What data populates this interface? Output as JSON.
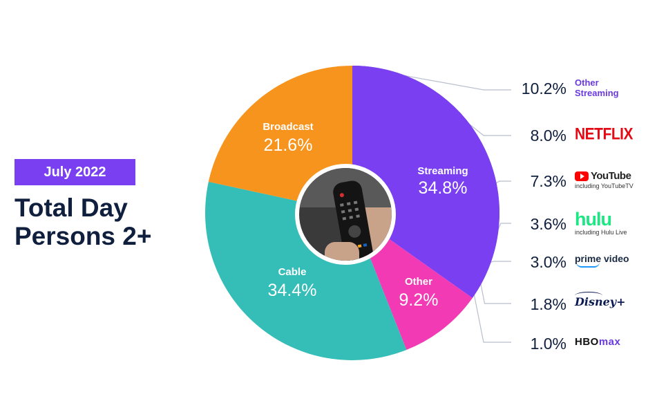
{
  "header": {
    "badge": "July 2022",
    "title_line1": "Total Day",
    "title_line2": "Persons 2+"
  },
  "colors": {
    "broadcast": "#f7941d",
    "streaming": "#7b3ff2",
    "cable": "#35bdb8",
    "other": "#f23ab5"
  },
  "chart_data": {
    "type": "pie",
    "title": "",
    "series": [
      {
        "name": "Streaming",
        "value": 34.8,
        "label": "34.8%",
        "color": "#7b3ff2"
      },
      {
        "name": "Other",
        "value": 9.2,
        "label": "9.2%",
        "color": "#f23ab5"
      },
      {
        "name": "Cable",
        "value": 34.4,
        "label": "34.4%",
        "color": "#35bdb8"
      },
      {
        "name": "Broadcast",
        "value": 21.6,
        "label": "21.6%",
        "color": "#f7941d"
      }
    ],
    "streaming_breakdown": [
      {
        "name": "Other Streaming",
        "value": 10.2,
        "label": "10.2%",
        "color": "#4a22a8"
      },
      {
        "name": "NETFLIX",
        "value": 8.0,
        "label": "8.0%",
        "color": "#5a2ec4"
      },
      {
        "name": "YouTube",
        "sub": "including YouTubeTV",
        "value": 7.3,
        "label": "7.3%",
        "color": "#6c44e0"
      },
      {
        "name": "hulu",
        "sub": "including Hulu Live",
        "value": 3.6,
        "label": "3.6%",
        "color": "#8866ee"
      },
      {
        "name": "prime video",
        "value": 3.0,
        "label": "3.0%",
        "color": "#a890f4"
      },
      {
        "name": "Disney+",
        "value": 1.8,
        "label": "1.8%",
        "color": "#c4b4f8"
      },
      {
        "name": "HBO max",
        "value": 1.0,
        "label": "1.0%",
        "color": "#ddd3fb"
      }
    ]
  }
}
